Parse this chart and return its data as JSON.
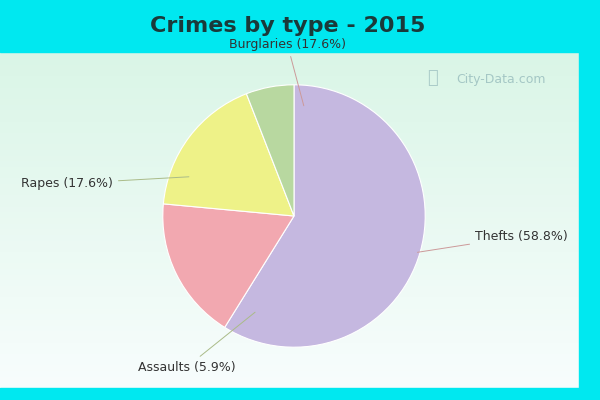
{
  "title": "Crimes by type - 2015",
  "labels": [
    "Thefts (58.8%)",
    "Burglaries (17.6%)",
    "Rapes (17.6%)",
    "Assaults (5.9%)"
  ],
  "percentages": [
    58.8,
    17.6,
    17.6,
    5.9
  ],
  "colors": [
    "#c5b8e0",
    "#f2a8b0",
    "#eef288",
    "#b8d8a0"
  ],
  "bg_cyan": "#00e8f0",
  "bg_main_top": "#d8f5ee",
  "bg_main_bottom": "#c8eee4",
  "title_fontsize": 16,
  "label_fontsize": 9,
  "startangle": 90,
  "watermark": "City-Data.com"
}
